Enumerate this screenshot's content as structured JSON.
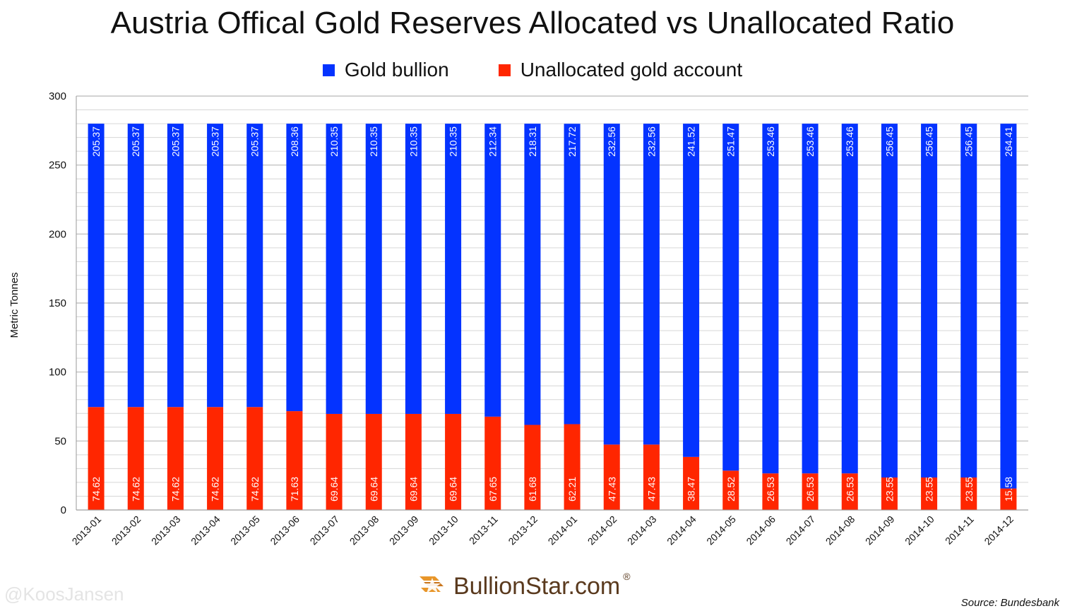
{
  "chart_data": {
    "type": "bar",
    "stacked": true,
    "title": "Austria Offical Gold Reserves Allocated vs Unallocated Ratio",
    "xlabel": "",
    "ylabel": "Metric Tonnes",
    "ylim": [
      0,
      300
    ],
    "yticks": [
      0,
      50,
      100,
      150,
      200,
      250,
      300
    ],
    "grid": true,
    "legend_position": "top",
    "categories": [
      "2013-01",
      "2013-02",
      "2013-03",
      "2013-04",
      "2013-05",
      "2013-06",
      "2013-07",
      "2013-08",
      "2013-09",
      "2013-10",
      "2013-11",
      "2013-12",
      "2014-01",
      "2014-02",
      "2014-03",
      "2014-04",
      "2014-05",
      "2014-06",
      "2014-07",
      "2014-08",
      "2014-09",
      "2014-10",
      "2014-11",
      "2014-12"
    ],
    "series": [
      {
        "name": "Unallocated gold account",
        "color": "#ff2600",
        "values": [
          74.62,
          74.62,
          74.62,
          74.62,
          74.62,
          71.63,
          69.64,
          69.64,
          69.64,
          69.64,
          67.65,
          61.68,
          62.21,
          47.43,
          47.43,
          38.47,
          28.52,
          26.53,
          26.53,
          26.53,
          23.55,
          23.55,
          23.55,
          15.58
        ],
        "labels": [
          "74.62",
          "74.62",
          "74.62",
          "74.62",
          "74.62",
          "71.63",
          "69.64",
          "69.64",
          "69.64",
          "69.64",
          "67.65",
          "61.68",
          "62.21",
          "47.43",
          "47.43",
          "38.47",
          "28.52",
          "26.53",
          "26.53",
          "26.53",
          "23.55",
          "23.55",
          "23.55",
          "15.58"
        ]
      },
      {
        "name": "Gold bullion",
        "color": "#0433ff",
        "values": [
          205.37,
          205.37,
          205.37,
          205.37,
          205.37,
          208.36,
          210.35,
          210.35,
          210.35,
          210.35,
          212.34,
          218.31,
          217.72,
          232.56,
          232.56,
          241.52,
          251.47,
          253.46,
          253.46,
          253.46,
          256.45,
          256.45,
          256.45,
          264.41
        ],
        "labels": [
          "205.37",
          "205.37",
          "205.37",
          "205.37",
          "205.37",
          "208.36",
          "210.35",
          "210.35",
          "210.35",
          "210.35",
          "212.34",
          "218.31",
          "217.72",
          "232.56",
          "232.56",
          "241.52",
          "251.47",
          "253.46",
          "253.46",
          "253.46",
          "256.45",
          "256.45",
          "256.45",
          "264.41"
        ]
      }
    ],
    "legend_order": [
      "Gold bullion",
      "Unallocated gold account"
    ]
  },
  "branding": {
    "logo_text": "BullionStar.com",
    "logo_reg": "®",
    "logo_icon": "star-logo-icon",
    "watermark": "@KoosJansen",
    "source": "Source: Bundesbank"
  }
}
